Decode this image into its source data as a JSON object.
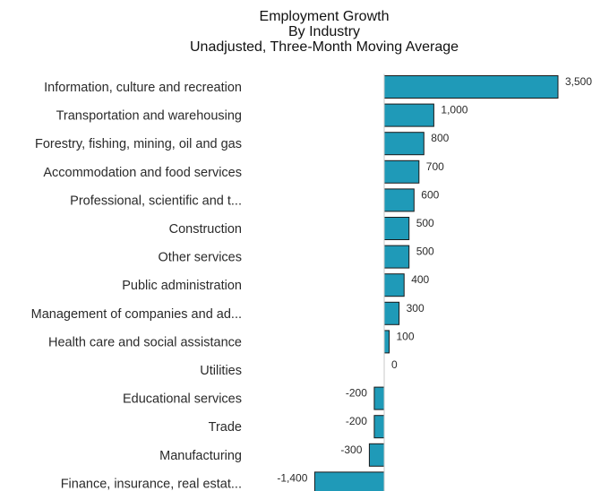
{
  "chart_data": {
    "type": "bar",
    "orientation": "horizontal",
    "title": "Employment Growth",
    "subtitle_lines": [
      "By Industry",
      "Unadjusted, Three-Month Moving Average"
    ],
    "xlabel": "",
    "ylabel": "",
    "xlim": [
      -1400,
      3500
    ],
    "grid": false,
    "legend": "none",
    "bar_color": "#1f9ab8",
    "categories": [
      "Information, culture and recreation",
      "Transportation and warehousing",
      "Forestry, fishing, mining, oil and gas",
      "Accommodation and food services",
      "Professional, scientific and t...",
      "Construction",
      "Other services",
      "Public administration",
      "Management of companies and ad...",
      "Health care and social assistance",
      "Utilities",
      "Educational services",
      "Trade",
      "Manufacturing",
      "Finance, insurance, real estat..."
    ],
    "values": [
      3500,
      1000,
      800,
      700,
      600,
      500,
      500,
      400,
      300,
      100,
      0,
      -200,
      -200,
      -300,
      -1400
    ],
    "value_labels": [
      "3,500",
      "1,000",
      "800",
      "700",
      "600",
      "500",
      "500",
      "400",
      "300",
      "100",
      "0",
      "-200",
      "-200",
      "-300",
      "-1,400"
    ]
  }
}
